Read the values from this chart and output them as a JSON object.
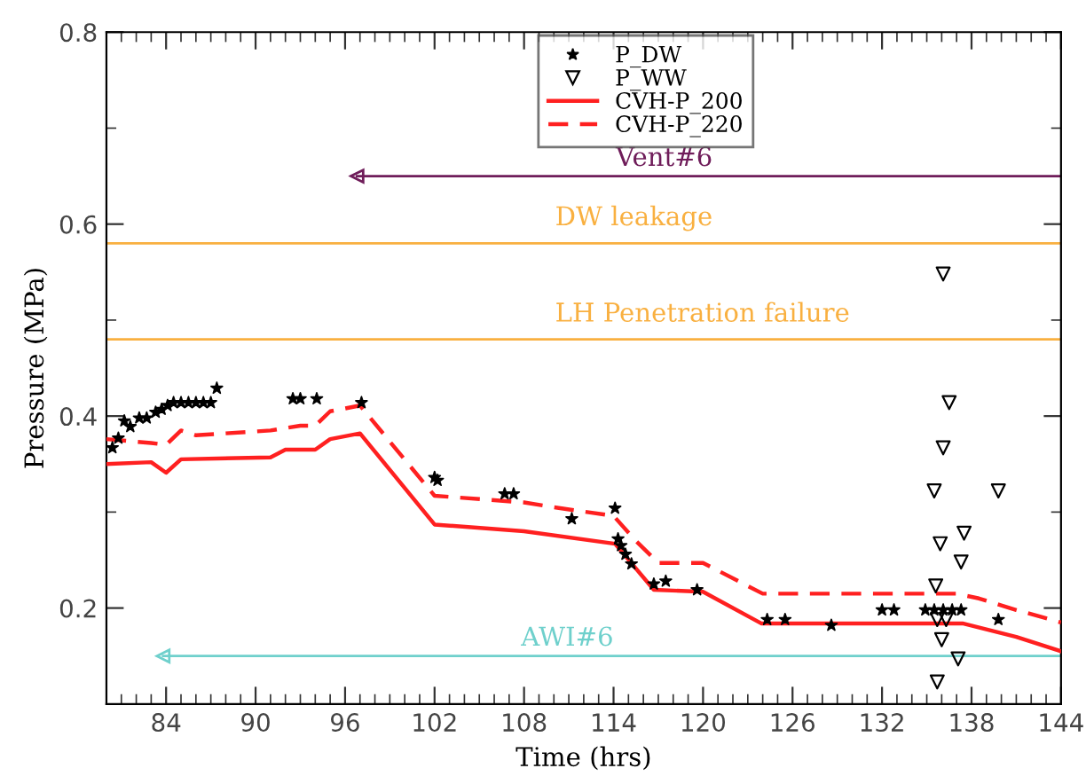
{
  "chart_data": {
    "type": "line",
    "xlabel": "Time (hrs)",
    "ylabel": "Pressure (MPa)",
    "xlim": [
      80,
      144
    ],
    "ylim": [
      0.1,
      0.8
    ],
    "xticks": [
      {
        "value": 81,
        "label": null
      },
      {
        "value": 82,
        "label": null
      },
      {
        "value": 83,
        "label": null
      },
      84,
      {
        "value": 85,
        "label": null
      },
      {
        "value": 86,
        "label": null
      },
      {
        "value": 87,
        "label": null
      },
      {
        "value": 88,
        "label": null
      },
      {
        "value": 89,
        "label": null
      },
      90,
      {
        "value": 91,
        "label": null
      },
      {
        "value": 92,
        "label": null
      },
      {
        "value": 93,
        "label": null
      },
      {
        "value": 94,
        "label": null
      },
      {
        "value": 95,
        "label": null
      },
      96,
      {
        "value": 97,
        "label": null
      },
      {
        "value": 98,
        "label": null
      },
      {
        "value": 99,
        "label": null
      },
      {
        "value": 100,
        "label": null
      },
      {
        "value": 101,
        "label": null
      },
      102,
      {
        "value": 103,
        "label": null
      },
      {
        "value": 104,
        "label": null
      },
      {
        "value": 105,
        "label": null
      },
      {
        "value": 106,
        "label": null
      },
      {
        "value": 107,
        "label": null
      },
      108,
      {
        "value": 109,
        "label": null
      },
      {
        "value": 110,
        "label": null
      },
      {
        "value": 111,
        "label": null
      },
      {
        "value": 112,
        "label": null
      },
      {
        "value": 113,
        "label": null
      },
      114,
      {
        "value": 115,
        "label": null
      },
      {
        "value": 116,
        "label": null
      },
      {
        "value": 117,
        "label": null
      },
      {
        "value": 118,
        "label": null
      },
      {
        "value": 119,
        "label": null
      },
      120,
      {
        "value": 121,
        "label": null
      },
      {
        "value": 122,
        "label": null
      },
      {
        "value": 123,
        "label": null
      },
      {
        "value": 124,
        "label": null
      },
      {
        "value": 125,
        "label": null
      },
      126,
      {
        "value": 127,
        "label": null
      },
      {
        "value": 128,
        "label": null
      },
      {
        "value": 129,
        "label": null
      },
      {
        "value": 130,
        "label": null
      },
      {
        "value": 131,
        "label": null
      },
      132,
      {
        "value": 133,
        "label": null
      },
      {
        "value": 134,
        "label": null
      },
      {
        "value": 135,
        "label": null
      },
      {
        "value": 136,
        "label": null
      },
      {
        "value": 137,
        "label": null
      },
      138,
      {
        "value": 139,
        "label": null
      },
      {
        "value": 140,
        "label": null
      },
      {
        "value": 141,
        "label": null
      },
      {
        "value": 142,
        "label": null
      },
      {
        "value": 143,
        "label": null
      },
      144
    ],
    "yticks": [
      0.2,
      {
        "value": 0.3,
        "label": null
      },
      0.4,
      {
        "value": 0.5,
        "label": null
      },
      0.6,
      {
        "value": 0.7,
        "label": null
      },
      0.8
    ],
    "grid": false,
    "legend": "top",
    "series": [
      {
        "name": "P_DW",
        "type": "scatter",
        "marker": "star",
        "color": "#000000",
        "x": [
          80.4,
          80.8,
          81.2,
          81.6,
          82.2,
          82.7,
          83.3,
          83.7,
          84.1,
          84.5,
          85.0,
          85.5,
          86.0,
          86.5,
          87.0,
          87.4,
          92.5,
          93.0,
          94.1,
          97.1,
          102.0,
          102.2,
          106.7,
          107.3,
          111.2,
          114.1,
          114.3,
          114.5,
          114.8,
          115.2,
          116.7,
          117.5,
          119.6,
          124.3,
          125.5,
          128.6,
          132.0,
          132.8,
          134.9,
          135.5,
          136.1,
          136.7,
          137.3,
          139.8
        ],
        "values": [
          0.367,
          0.377,
          0.395,
          0.389,
          0.398,
          0.398,
          0.404,
          0.407,
          0.411,
          0.414,
          0.414,
          0.414,
          0.414,
          0.414,
          0.414,
          0.429,
          0.418,
          0.418,
          0.418,
          0.414,
          0.336,
          0.333,
          0.319,
          0.319,
          0.293,
          0.304,
          0.272,
          0.265,
          0.256,
          0.246,
          0.225,
          0.228,
          0.219,
          0.188,
          0.188,
          0.182,
          0.198,
          0.198,
          0.198,
          0.198,
          0.198,
          0.198,
          0.198,
          0.188
        ]
      },
      {
        "name": "P_WW",
        "type": "scatter",
        "marker": "triangle",
        "color": "#000000",
        "x": [
          136.1,
          136.5,
          136.1,
          135.5,
          139.8,
          137.5,
          135.9,
          137.3,
          135.6,
          135.7,
          136.3,
          136.0,
          137.1,
          135.7
        ],
        "values": [
          0.548,
          0.414,
          0.367,
          0.322,
          0.322,
          0.278,
          0.267,
          0.248,
          0.223,
          0.188,
          0.188,
          0.167,
          0.147,
          0.123
        ]
      },
      {
        "name": "CVH-P_200",
        "line_style": "solid",
        "color": "#ff2020",
        "x": [
          80,
          83,
          84,
          85,
          91,
          92,
          94,
          95,
          97,
          102,
          108,
          114.1,
          116.7,
          120,
          123.9,
          137.4,
          141,
          144
        ],
        "values": [
          0.35,
          0.352,
          0.341,
          0.355,
          0.357,
          0.365,
          0.365,
          0.376,
          0.382,
          0.287,
          0.28,
          0.267,
          0.219,
          0.217,
          0.184,
          0.184,
          0.17,
          0.155
        ]
      },
      {
        "name": "CVH-P_220",
        "line_style": "dashed",
        "color": "#ff2020",
        "x": [
          80,
          83,
          84,
          85,
          86,
          91,
          93,
          94,
          95,
          97,
          102,
          108,
          110,
          114,
          115.5,
          117,
          120,
          124,
          137,
          138.5,
          141,
          144
        ],
        "values": [
          0.376,
          0.372,
          0.37,
          0.385,
          0.38,
          0.385,
          0.39,
          0.39,
          0.405,
          0.411,
          0.317,
          0.31,
          0.305,
          0.296,
          0.27,
          0.247,
          0.247,
          0.215,
          0.215,
          0.21,
          0.198,
          0.185
        ]
      },
      {
        "name": "Vent#6",
        "marker": "triangle",
        "line_style": "solid",
        "color": "#6f1d5a",
        "x": [
          96.8,
          144
        ],
        "values": [
          0.65,
          0.65
        ]
      },
      {
        "name": "AWI#6",
        "marker": "triangle",
        "line_style": "solid",
        "color": "#6fd0cc",
        "x": [
          83.8,
          144
        ],
        "values": [
          0.15,
          0.15
        ]
      }
    ],
    "ref_lines": [
      {
        "axis": "y",
        "value": 0.58,
        "label": "DW leakage",
        "color": "#f9b040"
      },
      {
        "axis": "y",
        "value": 0.48,
        "label": "LH Penetration failure",
        "color": "#f9b040"
      }
    ]
  }
}
